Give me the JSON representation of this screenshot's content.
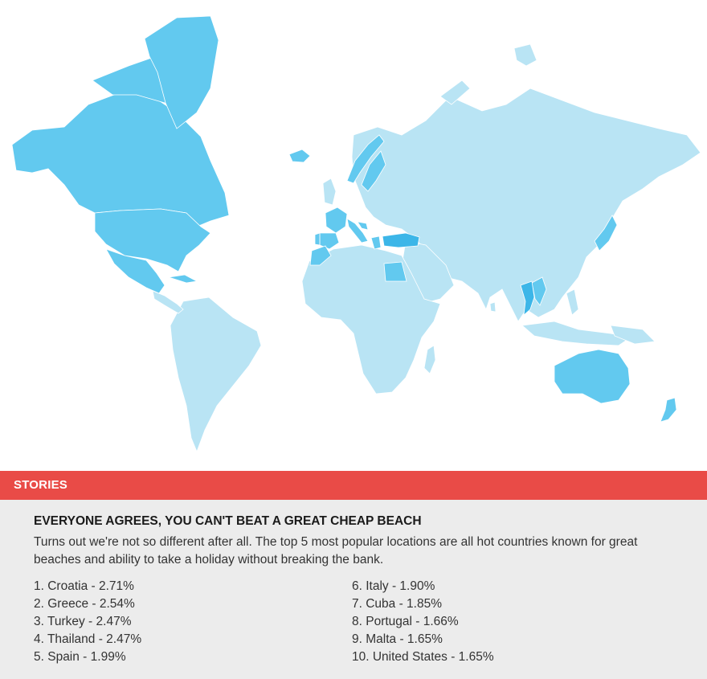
{
  "map": {
    "colors": {
      "base": "#b9e4f4",
      "highlight": "#62c9ef",
      "strong": "#3cb6e8",
      "border": "#ffffff"
    },
    "highlighted_regions": [
      "Canada",
      "United States",
      "Mexico",
      "Greenland",
      "Iceland",
      "Norway",
      "Sweden",
      "France",
      "Spain",
      "Portugal",
      "Italy",
      "Croatia",
      "Greece",
      "Turkey",
      "Egypt",
      "Thailand",
      "Vietnam",
      "Cuba",
      "Japan",
      "Australia",
      "New Zealand"
    ]
  },
  "stories": {
    "header": "STORIES",
    "title": "EVERYONE AGREES, YOU CAN'T BEAT A GREAT CHEAP BEACH",
    "body": "Turns out we're not so different after all. The top 5 most popular locations are all hot countries known for great beaches and ability to take a holiday without breaking the bank.",
    "rankings_left": [
      "1. Croatia - 2.71%",
      "2. Greece - 2.54%",
      "3. Turkey - 2.47%",
      "4. Thailand - 2.47%",
      "5. Spain - 1.99%"
    ],
    "rankings_right": [
      "6. Italy - 1.90%",
      "7. Cuba - 1.85%",
      "8. Portugal - 1.66%",
      "9. Malta - 1.65%",
      "10. United States - 1.65%"
    ]
  }
}
